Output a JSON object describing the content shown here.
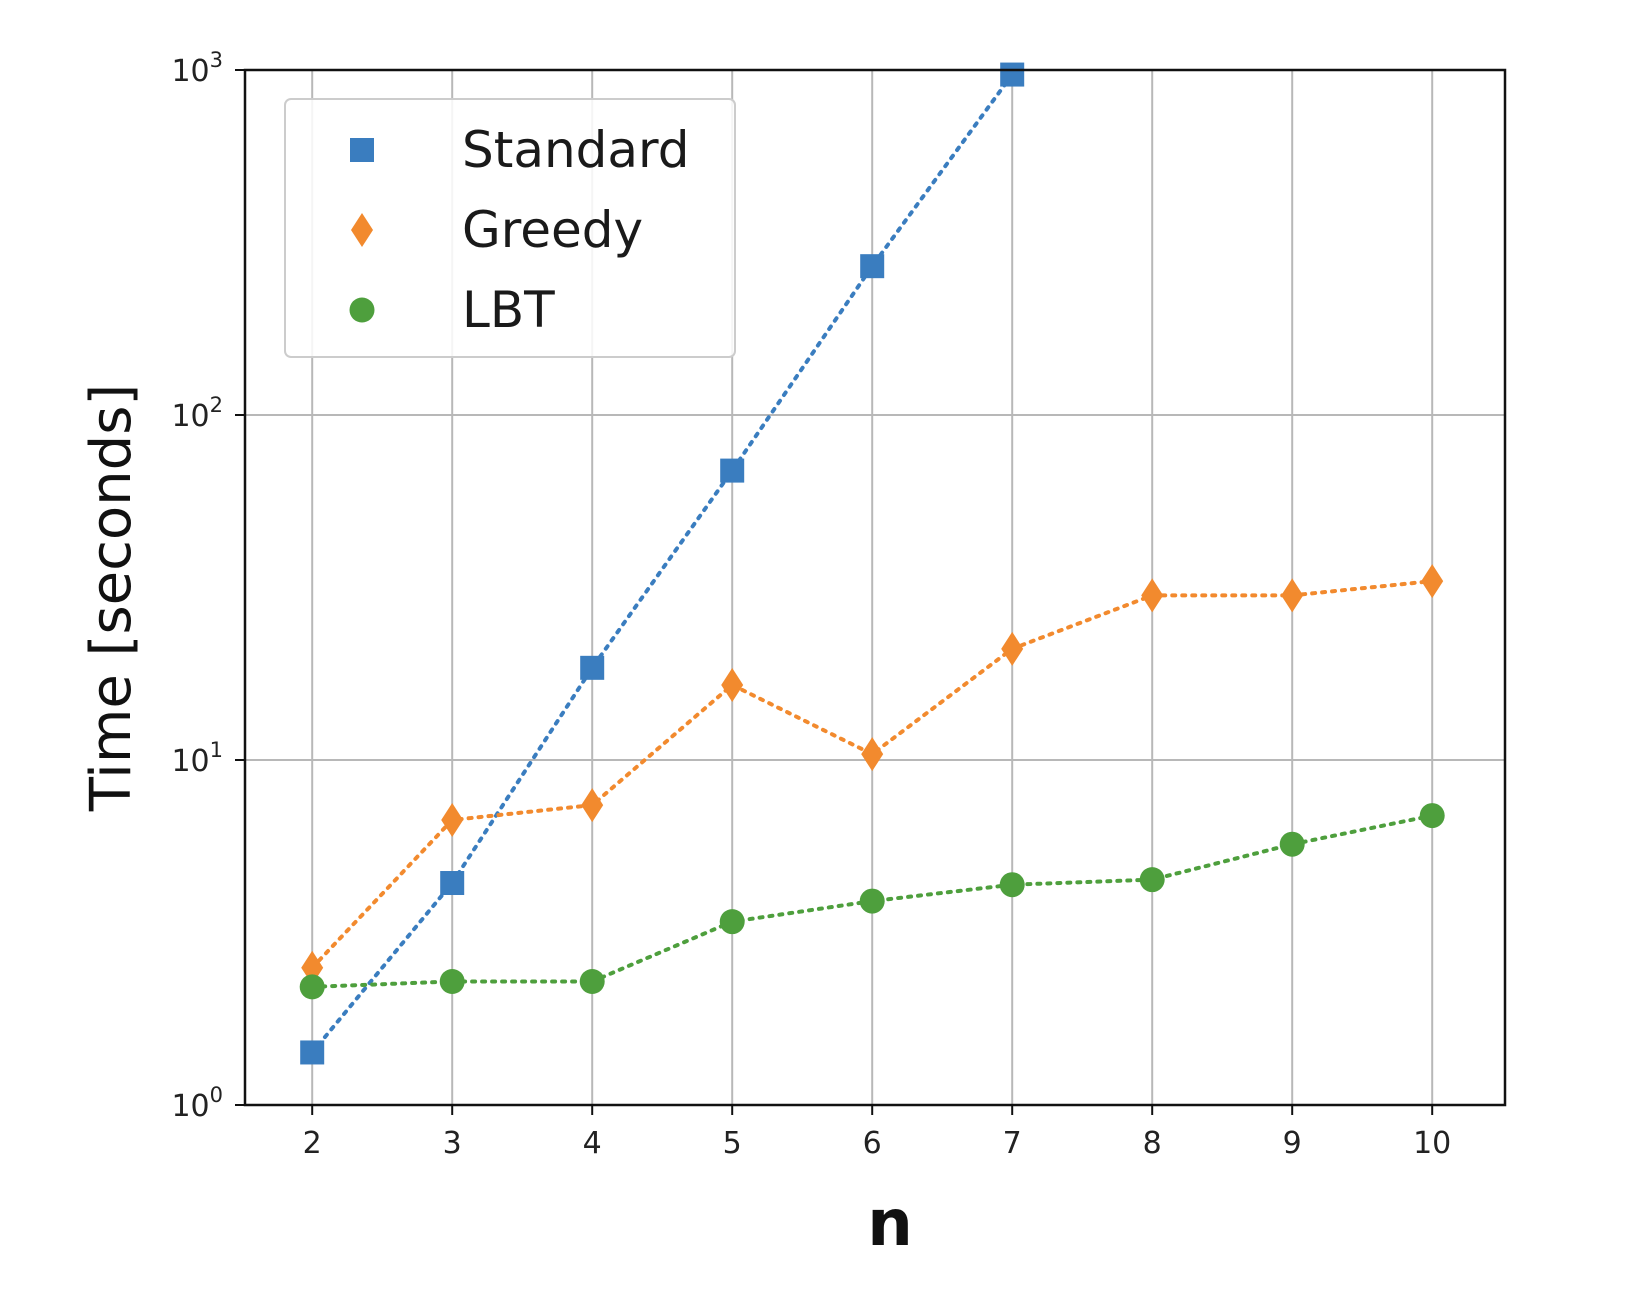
{
  "chart_data": {
    "type": "line",
    "title": "",
    "xlabel": "n",
    "ylabel": "Time [seconds]",
    "x": [
      2,
      3,
      4,
      5,
      6,
      7,
      8,
      9,
      10
    ],
    "xticks": [
      "2",
      "3",
      "4",
      "5",
      "6",
      "7",
      "8",
      "9",
      "10"
    ],
    "yscale": "log",
    "ylim": [
      1,
      1000
    ],
    "yticks": [
      {
        "value": 1,
        "base": "10",
        "exp": "0"
      },
      {
        "value": 10,
        "base": "10",
        "exp": "1"
      },
      {
        "value": 100,
        "base": "10",
        "exp": "2"
      },
      {
        "value": 1000,
        "base": "10",
        "exp": "3"
      }
    ],
    "grid": true,
    "legend_position": "top-left",
    "series": [
      {
        "name": "Standard",
        "marker": "square",
        "color": "#3a7dbf",
        "linestyle": "dotted",
        "values": [
          1.42,
          4.4,
          18.5,
          69,
          270,
          970,
          null,
          null,
          null
        ]
      },
      {
        "name": "Greedy",
        "marker": "diamond",
        "color": "#f28a2e",
        "linestyle": "dotted",
        "values": [
          2.5,
          6.7,
          7.4,
          16.5,
          10.4,
          21,
          30,
          30,
          33
        ]
      },
      {
        "name": "LBT",
        "marker": "circle",
        "color": "#4e9f3d",
        "linestyle": "dotted",
        "values": [
          2.2,
          2.28,
          2.28,
          3.4,
          3.9,
          4.35,
          4.5,
          5.7,
          6.9
        ]
      }
    ]
  }
}
